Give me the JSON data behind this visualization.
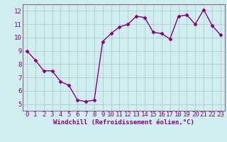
{
  "x": [
    0,
    1,
    2,
    3,
    4,
    5,
    6,
    7,
    8,
    9,
    10,
    11,
    12,
    13,
    14,
    15,
    16,
    17,
    18,
    19,
    20,
    21,
    22,
    23
  ],
  "y": [
    9.0,
    8.3,
    7.5,
    7.5,
    6.7,
    6.4,
    5.3,
    5.2,
    5.3,
    9.7,
    10.3,
    10.8,
    11.0,
    11.6,
    11.5,
    10.4,
    10.3,
    9.9,
    11.6,
    11.7,
    11.0,
    12.1,
    10.9,
    10.2
  ],
  "line_color": "#880088",
  "marker": "D",
  "markersize": 2.5,
  "linewidth": 1.0,
  "bg_color": "#d0eef0",
  "grid_color": "#b0ccd0",
  "xlabel": "Windchill (Refroidissement éolien,°C)",
  "xlim": [
    -0.5,
    23.5
  ],
  "ylim": [
    4.5,
    12.5
  ],
  "yticks": [
    5,
    6,
    7,
    8,
    9,
    10,
    11,
    12
  ],
  "xticks": [
    0,
    1,
    2,
    3,
    4,
    5,
    6,
    7,
    8,
    9,
    10,
    11,
    12,
    13,
    14,
    15,
    16,
    17,
    18,
    19,
    20,
    21,
    22,
    23
  ],
  "xlabel_fontsize": 6.5,
  "tick_fontsize": 6.5,
  "spine_color": "#886688"
}
